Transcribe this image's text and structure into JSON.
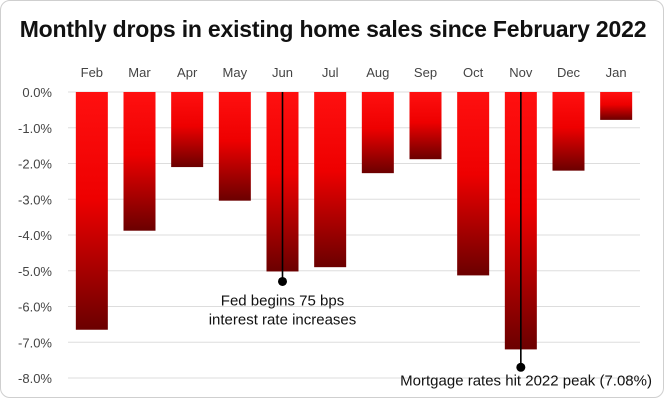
{
  "chart_data": {
    "type": "bar",
    "title": "Monthly drops in existing home sales since February 2022",
    "categories": [
      "Feb",
      "Mar",
      "Apr",
      "May",
      "Jun",
      "Jul",
      "Aug",
      "Sep",
      "Oct",
      "Nov",
      "Dec",
      "Jan"
    ],
    "values": [
      -6.65,
      -3.88,
      -2.1,
      -3.04,
      -5.02,
      -4.9,
      -2.27,
      -1.88,
      -5.13,
      -7.2,
      -2.2,
      -0.78
    ],
    "ylim": [
      -8,
      0
    ],
    "yticks": [
      0,
      -1,
      -2,
      -3,
      -4,
      -5,
      -6,
      -7,
      -8
    ],
    "ytick_labels": [
      "0.0%",
      "-1.0%",
      "-2.0%",
      "-3.0%",
      "-4.0%",
      "-5.0%",
      "-6.0%",
      "-7.0%",
      "-8.0%"
    ],
    "grid": true,
    "xaxis_position": "top",
    "colors": {
      "bar_top": "#ff0000",
      "bar_mid": "#ee0000",
      "bar_bottom": "#6b0000",
      "grid": "#dddddd"
    },
    "annotations": [
      {
        "category": "Jun",
        "value": -5.3,
        "lines": [
          "Fed begins 75 bps",
          "interest rate increases"
        ]
      },
      {
        "category": "Nov",
        "value": -7.7,
        "lines": [
          "Mortgage rates hit 2022 peak (7.08%)"
        ]
      }
    ]
  }
}
